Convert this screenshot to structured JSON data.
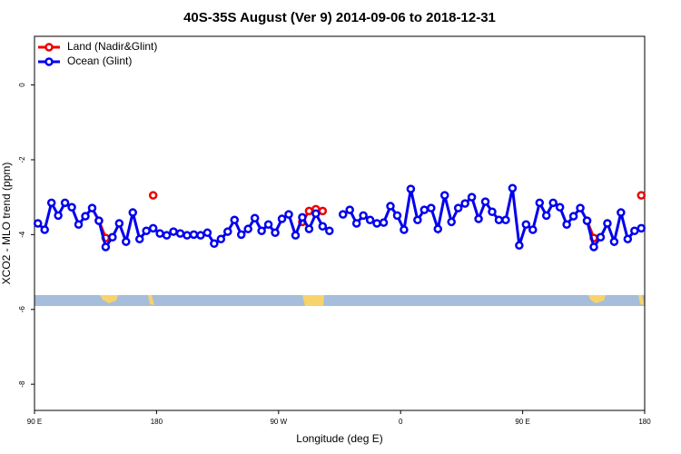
{
  "chart_data": {
    "type": "line",
    "title": "40S-35S August (Ver 9)   2014-09-06 to 2018-12-31",
    "xlabel": "Longitude (deg E)",
    "ylabel": "XCO2 - MLO trend (ppm)",
    "legend": "top-left",
    "xlim": [
      90,
      540
    ],
    "ylim": [
      -8.7,
      1.3
    ],
    "xticks": [
      {
        "value": 90,
        "label": "90 E"
      },
      {
        "value": 180,
        "label": "180"
      },
      {
        "value": 270,
        "label": "90 W"
      },
      {
        "value": 360,
        "label": "0"
      },
      {
        "value": 450,
        "label": "90 E"
      },
      {
        "value": 540,
        "label": "180"
      }
    ],
    "yticks": [
      0,
      -2,
      -4,
      -6,
      -8
    ],
    "x": [
      92.5,
      97.5,
      102.5,
      107.5,
      112.5,
      117.5,
      122.5,
      127.5,
      132.5,
      137.5,
      142.5,
      147.5,
      152.5,
      157.5,
      162.5,
      167.5,
      172.5,
      177.5,
      182.5,
      187.5,
      192.5,
      197.5,
      202.5,
      207.5,
      212.5,
      217.5,
      222.5,
      227.5,
      232.5,
      237.5,
      242.5,
      247.5,
      252.5,
      257.5,
      262.5,
      267.5,
      272.5,
      277.5,
      282.5,
      287.5,
      292.5,
      297.5,
      302.5,
      307.5,
      312.5,
      317.5,
      322.5,
      327.5,
      332.5,
      337.5,
      342.5,
      347.5,
      352.5,
      357.5,
      362.5,
      367.5,
      372.5,
      377.5,
      382.5,
      387.5,
      392.5,
      397.5,
      402.5,
      407.5,
      412.5,
      417.5,
      422.5,
      427.5,
      432.5,
      437.5,
      442.5,
      447.5,
      452.5,
      457.5,
      462.5,
      467.5,
      472.5,
      477.5,
      482.5,
      487.5,
      492.5,
      497.5,
      502.5,
      507.5,
      512.5,
      517.5,
      522.5,
      527.5,
      532.5,
      537.5
    ],
    "series": [
      {
        "name": "Land (Nadir&Glint)",
        "color": "#ee0000",
        "values": [
          null,
          null,
          null,
          null,
          null,
          null,
          null,
          null,
          null,
          -3.63,
          -4.09,
          null,
          null,
          null,
          null,
          null,
          null,
          -2.95,
          null,
          null,
          null,
          null,
          null,
          null,
          null,
          null,
          null,
          null,
          null,
          null,
          null,
          null,
          null,
          null,
          null,
          null,
          null,
          null,
          null,
          -3.66,
          -3.37,
          -3.32,
          -3.37,
          null,
          null,
          null,
          null,
          null,
          null,
          null,
          null,
          null,
          null,
          null,
          null,
          null,
          null,
          null,
          null,
          null,
          null,
          null,
          null,
          null,
          null,
          null,
          null,
          null,
          null,
          null,
          null,
          null,
          null,
          null,
          null,
          null,
          null,
          null,
          null,
          null,
          null,
          -3.63,
          -4.09,
          null,
          null,
          null,
          null,
          null,
          null,
          -2.95
        ]
      },
      {
        "name": "Ocean (Glint)",
        "color": "#0000ee",
        "values": [
          -3.7,
          -3.87,
          -3.15,
          -3.49,
          -3.15,
          -3.27,
          -3.73,
          -3.51,
          -3.29,
          -3.63,
          -4.33,
          -4.07,
          -3.7,
          -4.19,
          -3.41,
          -4.12,
          -3.9,
          -3.83,
          -3.97,
          -4.02,
          -3.92,
          -3.97,
          -4.02,
          -4.0,
          -4.02,
          -3.95,
          -4.24,
          -4.12,
          -3.92,
          -3.61,
          -4.0,
          -3.85,
          -3.56,
          -3.9,
          -3.73,
          -3.95,
          -3.58,
          -3.46,
          -4.02,
          -3.54,
          -3.85,
          -3.44,
          -3.78,
          -3.9,
          null,
          -3.46,
          -3.34,
          -3.7,
          -3.49,
          -3.61,
          -3.7,
          -3.68,
          -3.24,
          -3.49,
          -3.87,
          -2.78,
          -3.61,
          -3.34,
          -3.29,
          -3.85,
          -2.95,
          -3.66,
          -3.29,
          -3.17,
          -3.0,
          -3.58,
          -3.12,
          -3.39,
          -3.61,
          -3.61,
          -2.76,
          -4.29,
          -3.73,
          -3.87,
          -3.15,
          -3.49,
          -3.15,
          -3.27,
          -3.73,
          -3.51,
          -3.29,
          -3.63,
          -4.33,
          -4.07,
          -3.7,
          -4.19,
          -3.41,
          -4.12,
          -3.9,
          -3.83
        ]
      }
    ]
  }
}
